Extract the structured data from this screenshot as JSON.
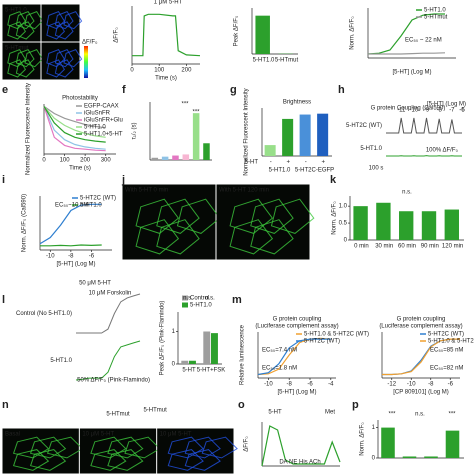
{
  "panels": [
    {
      "type": "images",
      "colorbar": "ΔF/F₀",
      "tiles": [
        {
          "tint": "#3cc83c",
          "caption": "5-HT1.0"
        },
        {
          "tint": "#2050e0"
        },
        {
          "tint": "#3cc83c",
          "caption": "5-HTmut"
        },
        {
          "tint": "#2050e0"
        }
      ]
    },
    {
      "type": "line",
      "ylabel": "ΔF/F₀",
      "xlabel": "Time (s)",
      "xlim": [
        0,
        250
      ],
      "xticks": [
        0,
        100,
        200
      ],
      "ylim": [
        -0.5,
        3
      ],
      "notes": [
        "1 μM 5-HT"
      ],
      "series": [
        {
          "color": "#2ca02c",
          "x": [
            0,
            20,
            40,
            45,
            60,
            100,
            150,
            160,
            170,
            200,
            250
          ],
          "values": [
            0,
            0,
            0,
            2.4,
            2.5,
            2.5,
            2.4,
            2.4,
            0.3,
            0.05,
            0
          ]
        }
      ]
    },
    {
      "type": "bar",
      "ylabel": "Peak ΔF/F₀",
      "categories": [
        "5-HT1.0",
        "5-HTmut"
      ],
      "ylim": [
        0,
        3
      ],
      "series": [
        {
          "color": "#2ca02c",
          "values": [
            2.5,
            0.02
          ]
        }
      ]
    },
    {
      "type": "line",
      "ylabel": "Norm. ΔF/F₀",
      "xlabel": "[5-HT] (Log M)",
      "xlim": [
        -11,
        -3
      ],
      "ylim": [
        -0.1,
        1.15
      ],
      "legend": true,
      "notes": [
        "EC₅₀ ~ 22 nM"
      ],
      "series": [
        {
          "name": "5-HT1.0",
          "color": "#2ca02c",
          "x": [
            -11,
            -10,
            -9,
            -8,
            -7,
            -6,
            -5,
            -4
          ],
          "values": [
            0,
            0.02,
            0.1,
            0.45,
            0.85,
            0.97,
            1,
            1
          ]
        },
        {
          "name": "5-HTmut",
          "color": "#999999",
          "x": [
            -11,
            -10,
            -9,
            -8,
            -7,
            -6,
            -5,
            -4
          ],
          "values": [
            0,
            0,
            0,
            0,
            0.01,
            0.02,
            0.02,
            0.03
          ]
        }
      ]
    },
    {
      "type": "line",
      "label": "e",
      "title": "Photostability",
      "ylabel": "Normalized Fluorescence Intensity",
      "xlabel": "Time (s)",
      "xlim": [
        0,
        350
      ],
      "xticks": [
        0,
        100,
        200,
        300
      ],
      "ylim": [
        0,
        1.05
      ],
      "legend": true,
      "series": [
        {
          "name": "EGFP-CAAX",
          "color": "#999999",
          "x": [
            0,
            50,
            100,
            150,
            200,
            250,
            300
          ],
          "values": [
            1,
            0.85,
            0.75,
            0.68,
            0.62,
            0.58,
            0.55
          ]
        },
        {
          "name": "iGluSnFR",
          "color": "#8fc3e6",
          "x": [
            0,
            50,
            100,
            150,
            200,
            250,
            300
          ],
          "values": [
            1,
            0.5,
            0.3,
            0.2,
            0.15,
            0.12,
            0.1
          ]
        },
        {
          "name": "iGluSnFR+Glu",
          "color": "#e377c2",
          "x": [
            0,
            50,
            100,
            150,
            200,
            250,
            300
          ],
          "values": [
            1,
            0.35,
            0.18,
            0.12,
            0.1,
            0.08,
            0.07
          ]
        },
        {
          "name": "5-HT1.0",
          "color": "#98df8a",
          "x": [
            0,
            50,
            100,
            150,
            200,
            250,
            300
          ],
          "values": [
            1,
            0.75,
            0.6,
            0.5,
            0.43,
            0.38,
            0.35
          ]
        },
        {
          "name": "5-HT1.0+5-HT",
          "color": "#2ca02c",
          "x": [
            0,
            50,
            100,
            150,
            200,
            250,
            300
          ],
          "values": [
            1,
            0.65,
            0.45,
            0.35,
            0.3,
            0.27,
            0.25
          ]
        }
      ]
    },
    {
      "type": "bar",
      "label": "f",
      "ylabel": "τ₁/₂ (s)",
      "categories": [
        null,
        null,
        null,
        null,
        null,
        null
      ],
      "ylim": [
        0,
        260
      ],
      "notes": [
        "***",
        "***"
      ],
      "series": [
        {
          "colors": [
            "#9e9e9e",
            "#8fc3e6",
            "#e377c2",
            "#f7b6d2",
            "#98df8a",
            "#2ca02c"
          ],
          "values": [
            10,
            15,
            20,
            25,
            210,
            75
          ]
        }
      ]
    },
    {
      "type": "bar",
      "label": "g",
      "title": "Brightness",
      "ylabel": "Normalized Fluorescent Intensity",
      "rowlabel": "5-HT",
      "categories": [
        "-",
        "+",
        "-",
        "+"
      ],
      "groups": [
        "5-HT1.0",
        "5-HT2C-EGFP"
      ],
      "ylim": [
        0,
        1.1
      ],
      "series": [
        {
          "colors": [
            "#98df8a",
            "#2ca02c",
            "#4a90d9",
            "#1f5fbf"
          ],
          "values": [
            0.25,
            0.85,
            0.95,
            0.97
          ]
        }
      ]
    },
    {
      "type": "traces",
      "label": "h",
      "title": "G protein Coupling (Cal590)",
      "doses": [
        -11,
        -10,
        -9,
        -8,
        -7,
        -6,
        -5
      ],
      "notes": [
        "[5-HT] (Log M)",
        "100 s",
        "100% ΔF/F₀"
      ],
      "ylim": [
        0,
        1
      ],
      "xlim": [
        0,
        60
      ],
      "series": [
        {
          "name": "5-HT2C (WT)",
          "color": "#555555",
          "x": [
            0,
            10,
            12,
            14,
            20,
            22,
            24,
            30,
            32,
            34,
            40,
            42,
            44,
            50,
            52,
            54,
            60
          ],
          "values": [
            0,
            0,
            1,
            0,
            0,
            1,
            0,
            0,
            1,
            0,
            0,
            0.95,
            0,
            0,
            0.9,
            0,
            0
          ]
        },
        {
          "name": "5-HT1.0",
          "color": "#2ca02c",
          "x": [
            0,
            10,
            12,
            14,
            20,
            22,
            24,
            30,
            32,
            34,
            40,
            42,
            44,
            50,
            52,
            54,
            60
          ],
          "values": [
            0,
            0,
            0.02,
            0,
            0,
            0.02,
            0,
            0,
            0.03,
            0,
            0,
            0.02,
            0,
            0,
            0.02,
            0,
            0
          ]
        }
      ]
    },
    {
      "type": "line",
      "label": "i",
      "ylabel": "Norm. ΔF/F₀ (Cal590)",
      "xlabel": "[5-HT] (Log M)",
      "xlim": [
        -11,
        -4
      ],
      "xticks": [
        -10,
        -8,
        -6
      ],
      "ylim": [
        -0.1,
        1.2
      ],
      "legend": true,
      "notes": [
        "EC₅₀~10 nM"
      ],
      "series": [
        {
          "name": "5-HT2C (WT)",
          "color": "#2f7fd0",
          "x": [
            -11,
            -10,
            -9,
            -8,
            -7,
            -6,
            -5
          ],
          "values": [
            0.05,
            0.2,
            0.5,
            0.85,
            0.98,
            1,
            1
          ]
        },
        {
          "name": "5-HT1.0",
          "color": "#2ca02c",
          "x": [
            -11,
            -10,
            -9,
            -8,
            -7,
            -6,
            -5
          ],
          "values": [
            0,
            0,
            0.01,
            0,
            0.02,
            0.01,
            0.02
          ]
        }
      ]
    },
    {
      "type": "images",
      "label": "j",
      "tiles": [
        {
          "tint": "#3cc83c",
          "caption": "With 5-HT 0 min"
        },
        {
          "tint": "#3cc83c",
          "caption": "With 5-HT 120 min"
        }
      ]
    },
    {
      "type": "bar",
      "label": "k",
      "ylabel": "Norm. ΔF/F₀",
      "categories": [
        "0 min",
        "30 min",
        "60 min",
        "90 min",
        "120 min"
      ],
      "ylim": [
        0,
        1.3
      ],
      "yticks": [
        0,
        {
          "value": 0.5,
          "label": "0.5"
        },
        {
          "value": 1,
          "label": "1.0"
        }
      ],
      "notes": [
        "n.s."
      ],
      "series": [
        {
          "color": "#2ca02c",
          "values": [
            1,
            1.1,
            0.85,
            0.85,
            0.9
          ]
        }
      ]
    },
    {
      "type": "traces",
      "label": "l",
      "notes": [
        "50 μM 5-HT",
        "10 μM Forskolin",
        "50% ΔF/F₀ (Pink-Flamindo)"
      ],
      "ylim": [
        0,
        1
      ],
      "xlim": [
        0,
        10
      ],
      "series": [
        {
          "name": "Control (No 5-HT1.0)",
          "color": "#777777",
          "x": [
            0,
            1,
            2,
            3,
            4,
            5,
            6,
            7,
            8,
            9,
            10
          ],
          "values": [
            0,
            0,
            0,
            0,
            0,
            0.1,
            0.5,
            0.8,
            0.9,
            0.95,
            1
          ]
        },
        {
          "name": "5-HT1.0",
          "color": "#2ca02c",
          "x": [
            0,
            1,
            2,
            3,
            4,
            5,
            6,
            7,
            8,
            9,
            10
          ],
          "values": [
            0,
            0.02,
            0.05,
            0.05,
            0.05,
            0.2,
            0.6,
            0.85,
            0.9,
            0.95,
            1
          ]
        }
      ]
    },
    {
      "type": "bar",
      "ylabel": "Peak ΔF/F₀ (Pink-Flamindo)",
      "categories": [
        "5-HT",
        "5-HT+FSK"
      ],
      "ylim": [
        0,
        1.6
      ],
      "yticks": [
        0,
        1
      ],
      "legend": true,
      "notes": [
        "n.s.",
        "n.s."
      ],
      "series": [
        {
          "name": "Control",
          "color": "#9e9e9e",
          "values": [
            0.1,
            1.0
          ]
        },
        {
          "name": "5-HT1.0",
          "color": "#2ca02c",
          "values": [
            0.1,
            0.95
          ]
        }
      ]
    },
    {
      "type": "line",
      "label": "m",
      "title": "G protein coupling",
      "subtitle": "(Luciferase complement assay)",
      "ylabel": "Relative luminescence",
      "xlabel": "[5-HT] (Log M)",
      "xlim": [
        -11,
        -3.5
      ],
      "xticks": [
        -10,
        -8,
        -6,
        -4
      ],
      "ylim": [
        -0.1,
        1.2
      ],
      "legend": true,
      "notes": [
        "EC₅₀=7.4 nM",
        "EC₅₀=1.8 nM"
      ],
      "series": [
        {
          "name": "5-HT1.0 & 5-HT2C (WT)",
          "color": "#f0a030",
          "x": [
            -11,
            -10,
            -9,
            -8,
            -7,
            -6,
            -5,
            -4
          ],
          "values": [
            0,
            0.02,
            0.15,
            0.55,
            0.9,
            1,
            1.02,
            1
          ]
        },
        {
          "name": "5-HT2C (WT)",
          "color": "#2f7fd0",
          "x": [
            -11,
            -10,
            -9,
            -8,
            -7,
            -6,
            -5,
            -4
          ],
          "values": [
            0,
            0.05,
            0.3,
            0.75,
            0.95,
            1,
            1,
            1
          ]
        }
      ]
    },
    {
      "type": "line",
      "title": "G protein coupling",
      "subtitle": "(Luciferase complement assay)",
      "xlabel": "[CP 809101] (Log M)",
      "xlim": [
        -13,
        -5
      ],
      "xticks": [
        -12,
        -10,
        -8,
        -6
      ],
      "ylim": [
        -0.1,
        1.2
      ],
      "legend": true,
      "notes": [
        "EC₅₀=85 nM",
        "EC₅₀=82 nM"
      ],
      "series": [
        {
          "name": "5-HT2C (WT)",
          "color": "#2f7fd0",
          "x": [
            -13,
            -12,
            -11,
            -10,
            -9,
            -8,
            -7,
            -6,
            -5
          ],
          "values": [
            0,
            0,
            0.02,
            0.1,
            0.4,
            0.8,
            0.95,
            1,
            1
          ]
        },
        {
          "name": "5-HT1.0 & 5-HT2C (WT)",
          "color": "#f0a030",
          "x": [
            -13,
            -12,
            -11,
            -10,
            -9,
            -8,
            -7,
            -6,
            -5
          ],
          "values": [
            0,
            0,
            0.02,
            0.08,
            0.35,
            0.78,
            0.95,
            1,
            1
          ]
        }
      ]
    },
    {
      "type": "images",
      "label": "n",
      "title": "5-HTmut",
      "tiles": [
        {
          "tint": "#3cc83c",
          "caption": "Basal"
        },
        {
          "tint": "#3cc83c",
          "caption": "10 μM 5-HT"
        },
        {
          "tint": "#2050e0",
          "caption": "10 μM 5-HT"
        }
      ]
    },
    {
      "type": "line",
      "label": "o",
      "ylabel": "ΔF/F₀",
      "xlim": [
        0,
        100
      ],
      "ylim": [
        0,
        2.2
      ],
      "notes": [
        "5-HT",
        "Met",
        "DA NE His ACh"
      ],
      "series": [
        {
          "color": "#2ca02c",
          "x": [
            0,
            10,
            20,
            30,
            40,
            50,
            60,
            70,
            80,
            90,
            100
          ],
          "values": [
            0,
            2,
            1.8,
            0.3,
            0.1,
            0.1,
            0.1,
            0.1,
            0.1,
            1.2,
            0.2
          ]
        }
      ]
    },
    {
      "type": "bar",
      "label": "p",
      "ylabel": "Norm. ΔF/F₀",
      "categories": [
        null,
        null,
        null,
        null
      ],
      "ylim": [
        0,
        1.25
      ],
      "yticks": [
        0,
        1
      ],
      "notes": [
        "***",
        "n.s.",
        "***"
      ],
      "series": [
        {
          "color": "#2ca02c",
          "values": [
            1,
            0.05,
            0.05,
            0.9
          ]
        }
      ]
    }
  ]
}
